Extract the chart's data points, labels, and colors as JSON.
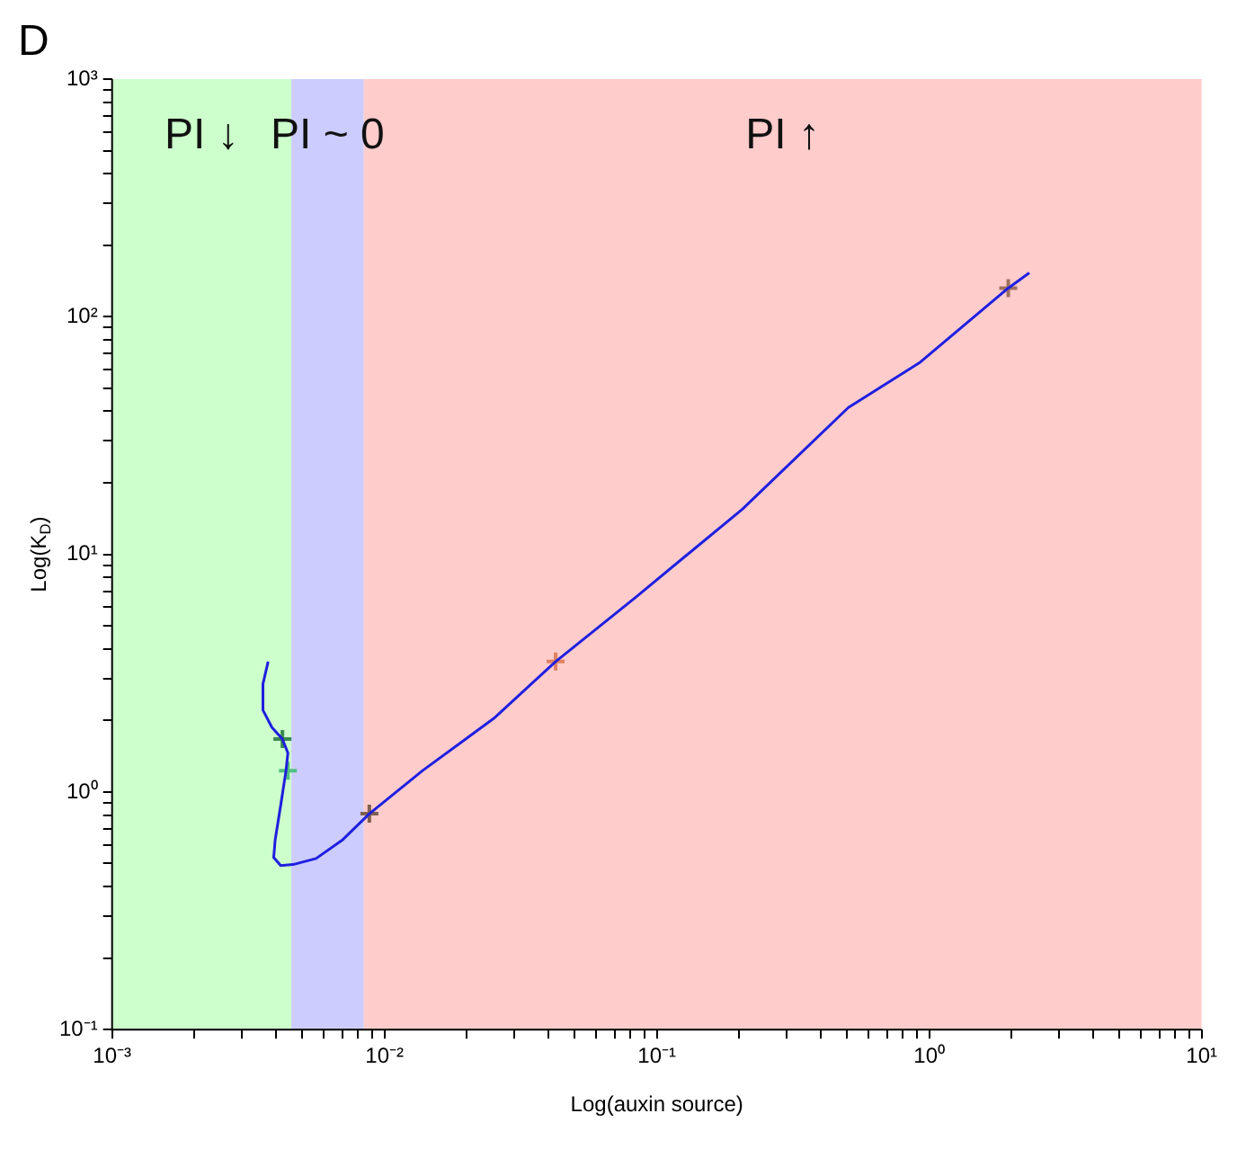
{
  "chart_data": {
    "type": "line",
    "title": "D",
    "xlabel": "Log(auxin source)",
    "ylabel": "Log(K$_{D}$)",
    "log": "xy",
    "grid": false,
    "legend": false,
    "line_style": "solid",
    "marker": "none",
    "xlim": [
      0.001,
      10
    ],
    "ylim": [
      0.1,
      1000
    ],
    "xticks": [
      {
        "value": 0.001,
        "label": "10⁻³"
      },
      {
        "value": 0.002,
        "label": null
      },
      {
        "value": 0.003,
        "label": null
      },
      {
        "value": 0.004,
        "label": null
      },
      {
        "value": 0.005,
        "label": null
      },
      {
        "value": 0.006,
        "label": null
      },
      {
        "value": 0.007,
        "label": null
      },
      {
        "value": 0.008,
        "label": null
      },
      {
        "value": 0.009,
        "label": null
      },
      {
        "value": 0.01,
        "label": "10⁻²"
      },
      {
        "value": 0.02,
        "label": null
      },
      {
        "value": 0.03,
        "label": null
      },
      {
        "value": 0.04,
        "label": null
      },
      {
        "value": 0.05,
        "label": null
      },
      {
        "value": 0.06,
        "label": null
      },
      {
        "value": 0.07,
        "label": null
      },
      {
        "value": 0.08,
        "label": null
      },
      {
        "value": 0.09,
        "label": null
      },
      {
        "value": 0.1,
        "label": "10⁻¹"
      },
      {
        "value": 0.2,
        "label": null
      },
      {
        "value": 0.3,
        "label": null
      },
      {
        "value": 0.4,
        "label": null
      },
      {
        "value": 0.5,
        "label": null
      },
      {
        "value": 0.6,
        "label": null
      },
      {
        "value": 0.7,
        "label": null
      },
      {
        "value": 0.8,
        "label": null
      },
      {
        "value": 0.9,
        "label": null
      },
      {
        "value": 1,
        "label": "10⁰"
      },
      {
        "value": 2,
        "label": null
      },
      {
        "value": 3,
        "label": null
      },
      {
        "value": 4,
        "label": null
      },
      {
        "value": 5,
        "label": null
      },
      {
        "value": 6,
        "label": null
      },
      {
        "value": 7,
        "label": null
      },
      {
        "value": 8,
        "label": null
      },
      {
        "value": 9,
        "label": null
      },
      {
        "value": 10,
        "label": "10¹"
      }
    ],
    "yticks": [
      {
        "value": 0.1,
        "label": "10⁻¹"
      },
      {
        "value": 0.2,
        "label": null
      },
      {
        "value": 0.3,
        "label": null
      },
      {
        "value": 0.4,
        "label": null
      },
      {
        "value": 0.5,
        "label": null
      },
      {
        "value": 0.6,
        "label": null
      },
      {
        "value": 0.7,
        "label": null
      },
      {
        "value": 0.8,
        "label": null
      },
      {
        "value": 0.9,
        "label": null
      },
      {
        "value": 1,
        "label": "10⁰"
      },
      {
        "value": 2,
        "label": null
      },
      {
        "value": 3,
        "label": null
      },
      {
        "value": 4,
        "label": null
      },
      {
        "value": 5,
        "label": null
      },
      {
        "value": 6,
        "label": null
      },
      {
        "value": 7,
        "label": null
      },
      {
        "value": 8,
        "label": null
      },
      {
        "value": 9,
        "label": null
      },
      {
        "value": 10,
        "label": "10¹"
      },
      {
        "value": 20,
        "label": null
      },
      {
        "value": 30,
        "label": null
      },
      {
        "value": 40,
        "label": null
      },
      {
        "value": 50,
        "label": null
      },
      {
        "value": 60,
        "label": null
      },
      {
        "value": 70,
        "label": null
      },
      {
        "value": 80,
        "label": null
      },
      {
        "value": 90,
        "label": null
      },
      {
        "value": 100,
        "label": "10²"
      },
      {
        "value": 200,
        "label": null
      },
      {
        "value": 300,
        "label": null
      },
      {
        "value": 400,
        "label": null
      },
      {
        "value": 500,
        "label": null
      },
      {
        "value": 600,
        "label": null
      },
      {
        "value": 700,
        "label": null
      },
      {
        "value": 800,
        "label": null
      },
      {
        "value": 900,
        "label": null
      },
      {
        "value": 1000,
        "label": "10³"
      }
    ],
    "bands": [
      {
        "axis": "x",
        "from": 0.001,
        "to": 0.00455,
        "label": "PI ↓",
        "color": "#ccffcc"
      },
      {
        "axis": "x",
        "from": 0.00455,
        "to": 0.0084,
        "label": "PI ~ 0",
        "color": "#ccccff"
      },
      {
        "axis": "x",
        "from": 0.0084,
        "to": 10,
        "label": "PI ↑",
        "color": "#ffcccc"
      }
    ],
    "series": [
      {
        "color": "#1f1fe0",
        "x": [
          0.00374,
          0.00358,
          0.00358,
          0.00386,
          0.00422,
          0.00442,
          0.00435,
          0.00416,
          0.00397,
          0.00392,
          0.00416,
          0.00462,
          0.00561,
          0.00703,
          0.0088,
          0.0138,
          0.0252,
          0.0425,
          0.0836,
          0.206,
          0.505,
          0.92,
          1.95,
          2.33
        ],
        "values": [
          3.54,
          2.85,
          2.21,
          1.87,
          1.67,
          1.46,
          1.23,
          0.88,
          0.63,
          0.53,
          0.49,
          0.495,
          0.525,
          0.63,
          0.81,
          1.23,
          2.04,
          3.54,
          6.6,
          15.5,
          41.5,
          64,
          132,
          153
        ]
      },
      {
        "type": "scatter",
        "marker": "cross",
        "colors": [
          "#3a8a50",
          "#50c080",
          "#806050",
          "#e08060",
          "#a07060"
        ],
        "x": [
          0.00422,
          0.00442,
          0.0088,
          0.0425,
          1.95
        ],
        "values": [
          1.67,
          1.23,
          0.81,
          3.54,
          132
        ]
      }
    ]
  }
}
